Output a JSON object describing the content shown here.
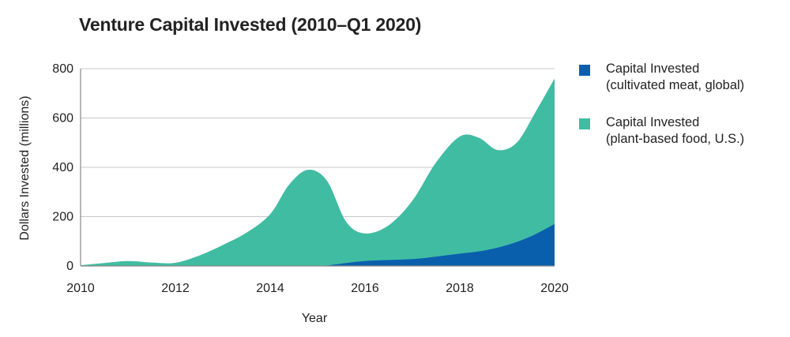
{
  "chart_data": {
    "type": "area",
    "title": "Venture Capital Invested (2010–Q1 2020)",
    "xlabel": "Year",
    "ylabel": "Dollars Invested (millions)",
    "xlim": [
      2010,
      2020
    ],
    "ylim": [
      0,
      800
    ],
    "x_ticks": [
      "2010",
      "2012",
      "2014",
      "2016",
      "2018",
      "2020"
    ],
    "y_ticks": [
      "0",
      "200",
      "400",
      "600",
      "800"
    ],
    "stacked": true,
    "grid": "horizontal",
    "legend_position": "right",
    "series": [
      {
        "name_lines": [
          "Capital Invested",
          "(cultivated meat, global)"
        ],
        "color": "#0a5fad",
        "x": [
          2010,
          2011,
          2012,
          2013,
          2014,
          2015,
          2015.2,
          2016,
          2017,
          2017.5,
          2018,
          2018.5,
          2019,
          2019.5,
          2020
        ],
        "values": [
          0,
          0,
          0,
          0,
          0,
          0,
          2,
          20,
          28,
          38,
          50,
          62,
          85,
          120,
          170
        ]
      },
      {
        "name_lines": [
          "Capital Invested",
          "(plant-based food, U.S.)"
        ],
        "color": "#40bca3",
        "x": [
          2010,
          2010.5,
          2011,
          2011.5,
          2012,
          2012.5,
          2013,
          2013.5,
          2014,
          2014.4,
          2014.8,
          2015.2,
          2015.6,
          2016,
          2016.5,
          2017,
          2017.5,
          2018,
          2018.4,
          2018.8,
          2019.2,
          2019.6,
          2020
        ],
        "total": [
          3,
          12,
          20,
          14,
          13,
          42,
          85,
          135,
          210,
          330,
          390,
          345,
          180,
          132,
          165,
          265,
          420,
          525,
          520,
          470,
          500,
          625,
          760
        ]
      }
    ]
  }
}
